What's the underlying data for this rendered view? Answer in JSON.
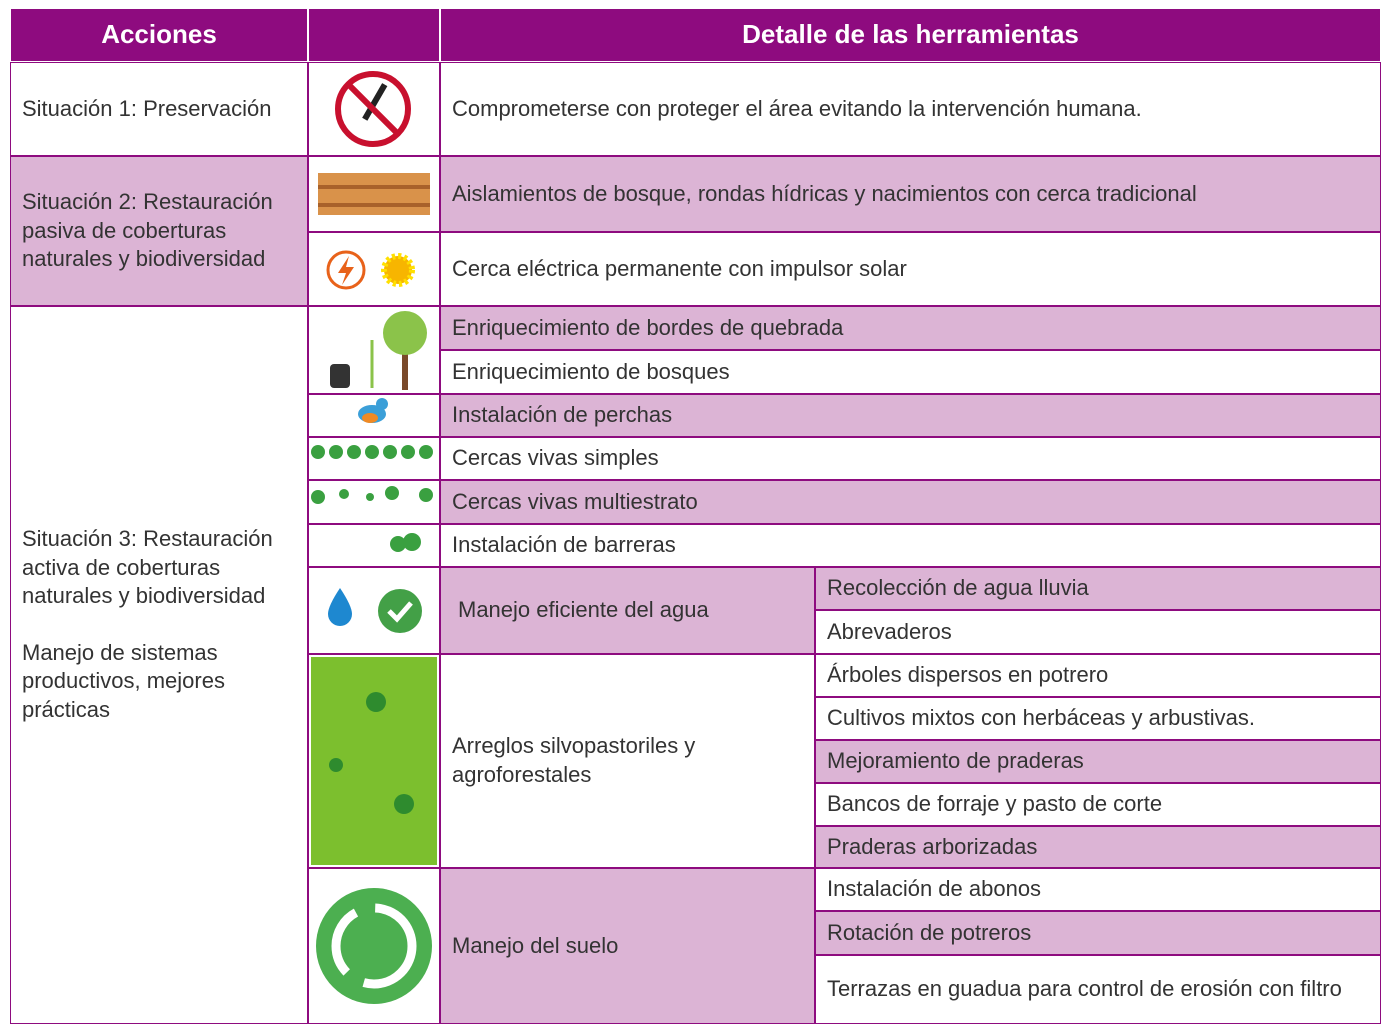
{
  "header": {
    "actions": "Acciones",
    "details": "Detalle de las herramientas"
  },
  "situations": [
    {
      "label": "Situación 1: Preservación"
    },
    {
      "label": "Situación 2: Restauración pasiva de coberturas naturales y biodiversidad"
    },
    {
      "label": "Situación 3: Restauración activa de coberturas naturales y biodiversidad",
      "note": "Manejo de sistemas productivos, mejores prácticas"
    }
  ],
  "tools": [
    "Comprometerse con proteger el área evitando la intervención humana.",
    "Aislamientos de bosque, rondas hídricas y nacimientos con cerca tradicional",
    "Cerca eléctrica permanente con impulsor solar",
    "Enriquecimiento de bordes de quebrada",
    "Enriquecimiento de bosques",
    "Instalación de perchas",
    "Cercas vivas simples",
    "Cercas vivas multiestrato",
    "Instalación de barreras"
  ],
  "groups": [
    {
      "label": "Manejo eficiente del agua",
      "items": [
        "Recolección de agua lluvia",
        "Abrevaderos"
      ]
    },
    {
      "label": "Arreglos silvopastoriles y agroforestales",
      "items": [
        "Árboles dispersos en potrero",
        "Cultivos mixtos con herbáceas y arbustivas.",
        "Mejoramiento de praderas",
        "Bancos de forraje y pasto de corte",
        "Praderas arborizadas"
      ]
    },
    {
      "label": "Manejo del suelo",
      "items": [
        "Instalación de abonos",
        "Rotación de potreros",
        "Terrazas en guadua para control de erosión con filtro"
      ]
    }
  ]
}
